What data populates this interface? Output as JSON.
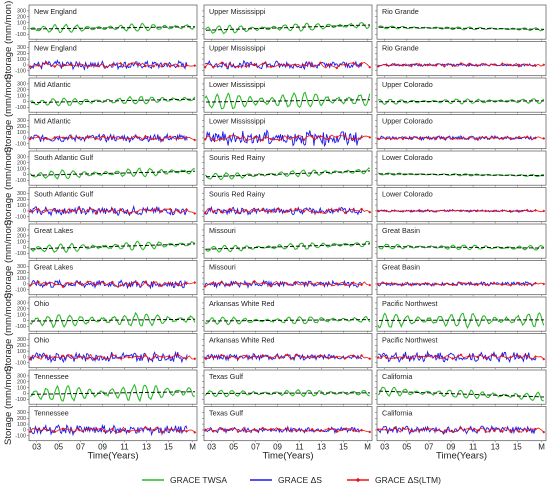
{
  "chart_data": {
    "type": "line",
    "ylabel": "Storage (mm/mon)",
    "xlabel": "Time(Years)",
    "x_ticks": [
      "03",
      "05",
      "07",
      "09",
      "11",
      "13",
      "15",
      "M"
    ],
    "y_ticks": [
      "300",
      "200",
      "100",
      "0",
      "-100"
    ],
    "ylim": [
      -150,
      350
    ],
    "xlim": [
      2002.3,
      2017.6
    ],
    "series_styles": {
      "GRACE TWSA": "#22bb22",
      "GRACE ΔS": "#1a1aee",
      "GRACE ΔS(LTM)": "#ee1111",
      "trend": "#111111"
    },
    "legend": {
      "position": "bottom",
      "entries": [
        "GRACE TWSA",
        "GRACE ΔS",
        "GRACE ΔS(LTM)"
      ]
    },
    "columns": [
      {
        "regions": [
          {
            "name": "New England",
            "twsa_amp": 55,
            "twsa_trend": [
              -10,
              30
            ],
            "ds_amp": 60,
            "ltm_amp": 40
          },
          {
            "name": "Mid Atlantic",
            "twsa_amp": 55,
            "twsa_trend": [
              -20,
              40
            ],
            "ds_amp": 55,
            "ltm_amp": 35
          },
          {
            "name": "South Atlantic Gulf",
            "twsa_amp": 60,
            "twsa_trend": [
              -15,
              55
            ],
            "ds_amp": 60,
            "ltm_amp": 45
          },
          {
            "name": "Great Lakes",
            "twsa_amp": 60,
            "twsa_trend": [
              -25,
              60
            ],
            "ds_amp": 55,
            "ltm_amp": 50
          },
          {
            "name": "Ohio",
            "twsa_amp": 90,
            "twsa_trend": [
              -10,
              20
            ],
            "ds_amp": 70,
            "ltm_amp": 40
          },
          {
            "name": "Tennessee",
            "twsa_amp": 110,
            "twsa_trend": [
              -15,
              30
            ],
            "ds_amp": 70,
            "ltm_amp": 45
          }
        ]
      },
      {
        "regions": [
          {
            "name": "Upper Mississippi",
            "twsa_amp": 55,
            "twsa_trend": [
              -30,
              60
            ],
            "ds_amp": 55,
            "ltm_amp": 50
          },
          {
            "name": "Lower Mississippi",
            "twsa_amp": 110,
            "twsa_trend": [
              -10,
              30
            ],
            "ds_amp": 110,
            "ltm_amp": 50
          },
          {
            "name": "Souris Red Rainy",
            "twsa_amp": 45,
            "twsa_trend": [
              -40,
              60
            ],
            "ds_amp": 50,
            "ltm_amp": 45
          },
          {
            "name": "Missouri",
            "twsa_amp": 45,
            "twsa_trend": [
              -30,
              60
            ],
            "ds_amp": 45,
            "ltm_amp": 40
          },
          {
            "name": "Arkansas White Red",
            "twsa_amp": 50,
            "twsa_trend": [
              -10,
              15
            ],
            "ds_amp": 45,
            "ltm_amp": 35
          },
          {
            "name": "Texas Gulf",
            "twsa_amp": 45,
            "twsa_trend": [
              0,
              10
            ],
            "ds_amp": 40,
            "ltm_amp": 40
          }
        ]
      },
      {
        "regions": [
          {
            "name": "Rio Grande",
            "twsa_amp": 20,
            "twsa_trend": [
              20,
              -15
            ],
            "ds_amp": 20,
            "ltm_amp": 25
          },
          {
            "name": "Upper Colorado",
            "twsa_amp": 35,
            "twsa_trend": [
              -5,
              10
            ],
            "ds_amp": 30,
            "ltm_amp": 25
          },
          {
            "name": "Lower Colorado",
            "twsa_amp": 15,
            "twsa_trend": [
              10,
              -20
            ],
            "ds_amp": 15,
            "ltm_amp": 15
          },
          {
            "name": "Great Basin",
            "twsa_amp": 35,
            "twsa_trend": [
              15,
              -10
            ],
            "ds_amp": 30,
            "ltm_amp": 25
          },
          {
            "name": "Pacific Northwest",
            "twsa_amp": 100,
            "twsa_trend": [
              0,
              10
            ],
            "ds_amp": 70,
            "ltm_amp": 35
          },
          {
            "name": "California",
            "twsa_amp": 60,
            "twsa_trend": [
              40,
              -60
            ],
            "ds_amp": 55,
            "ltm_amp": 40
          }
        ]
      }
    ]
  }
}
